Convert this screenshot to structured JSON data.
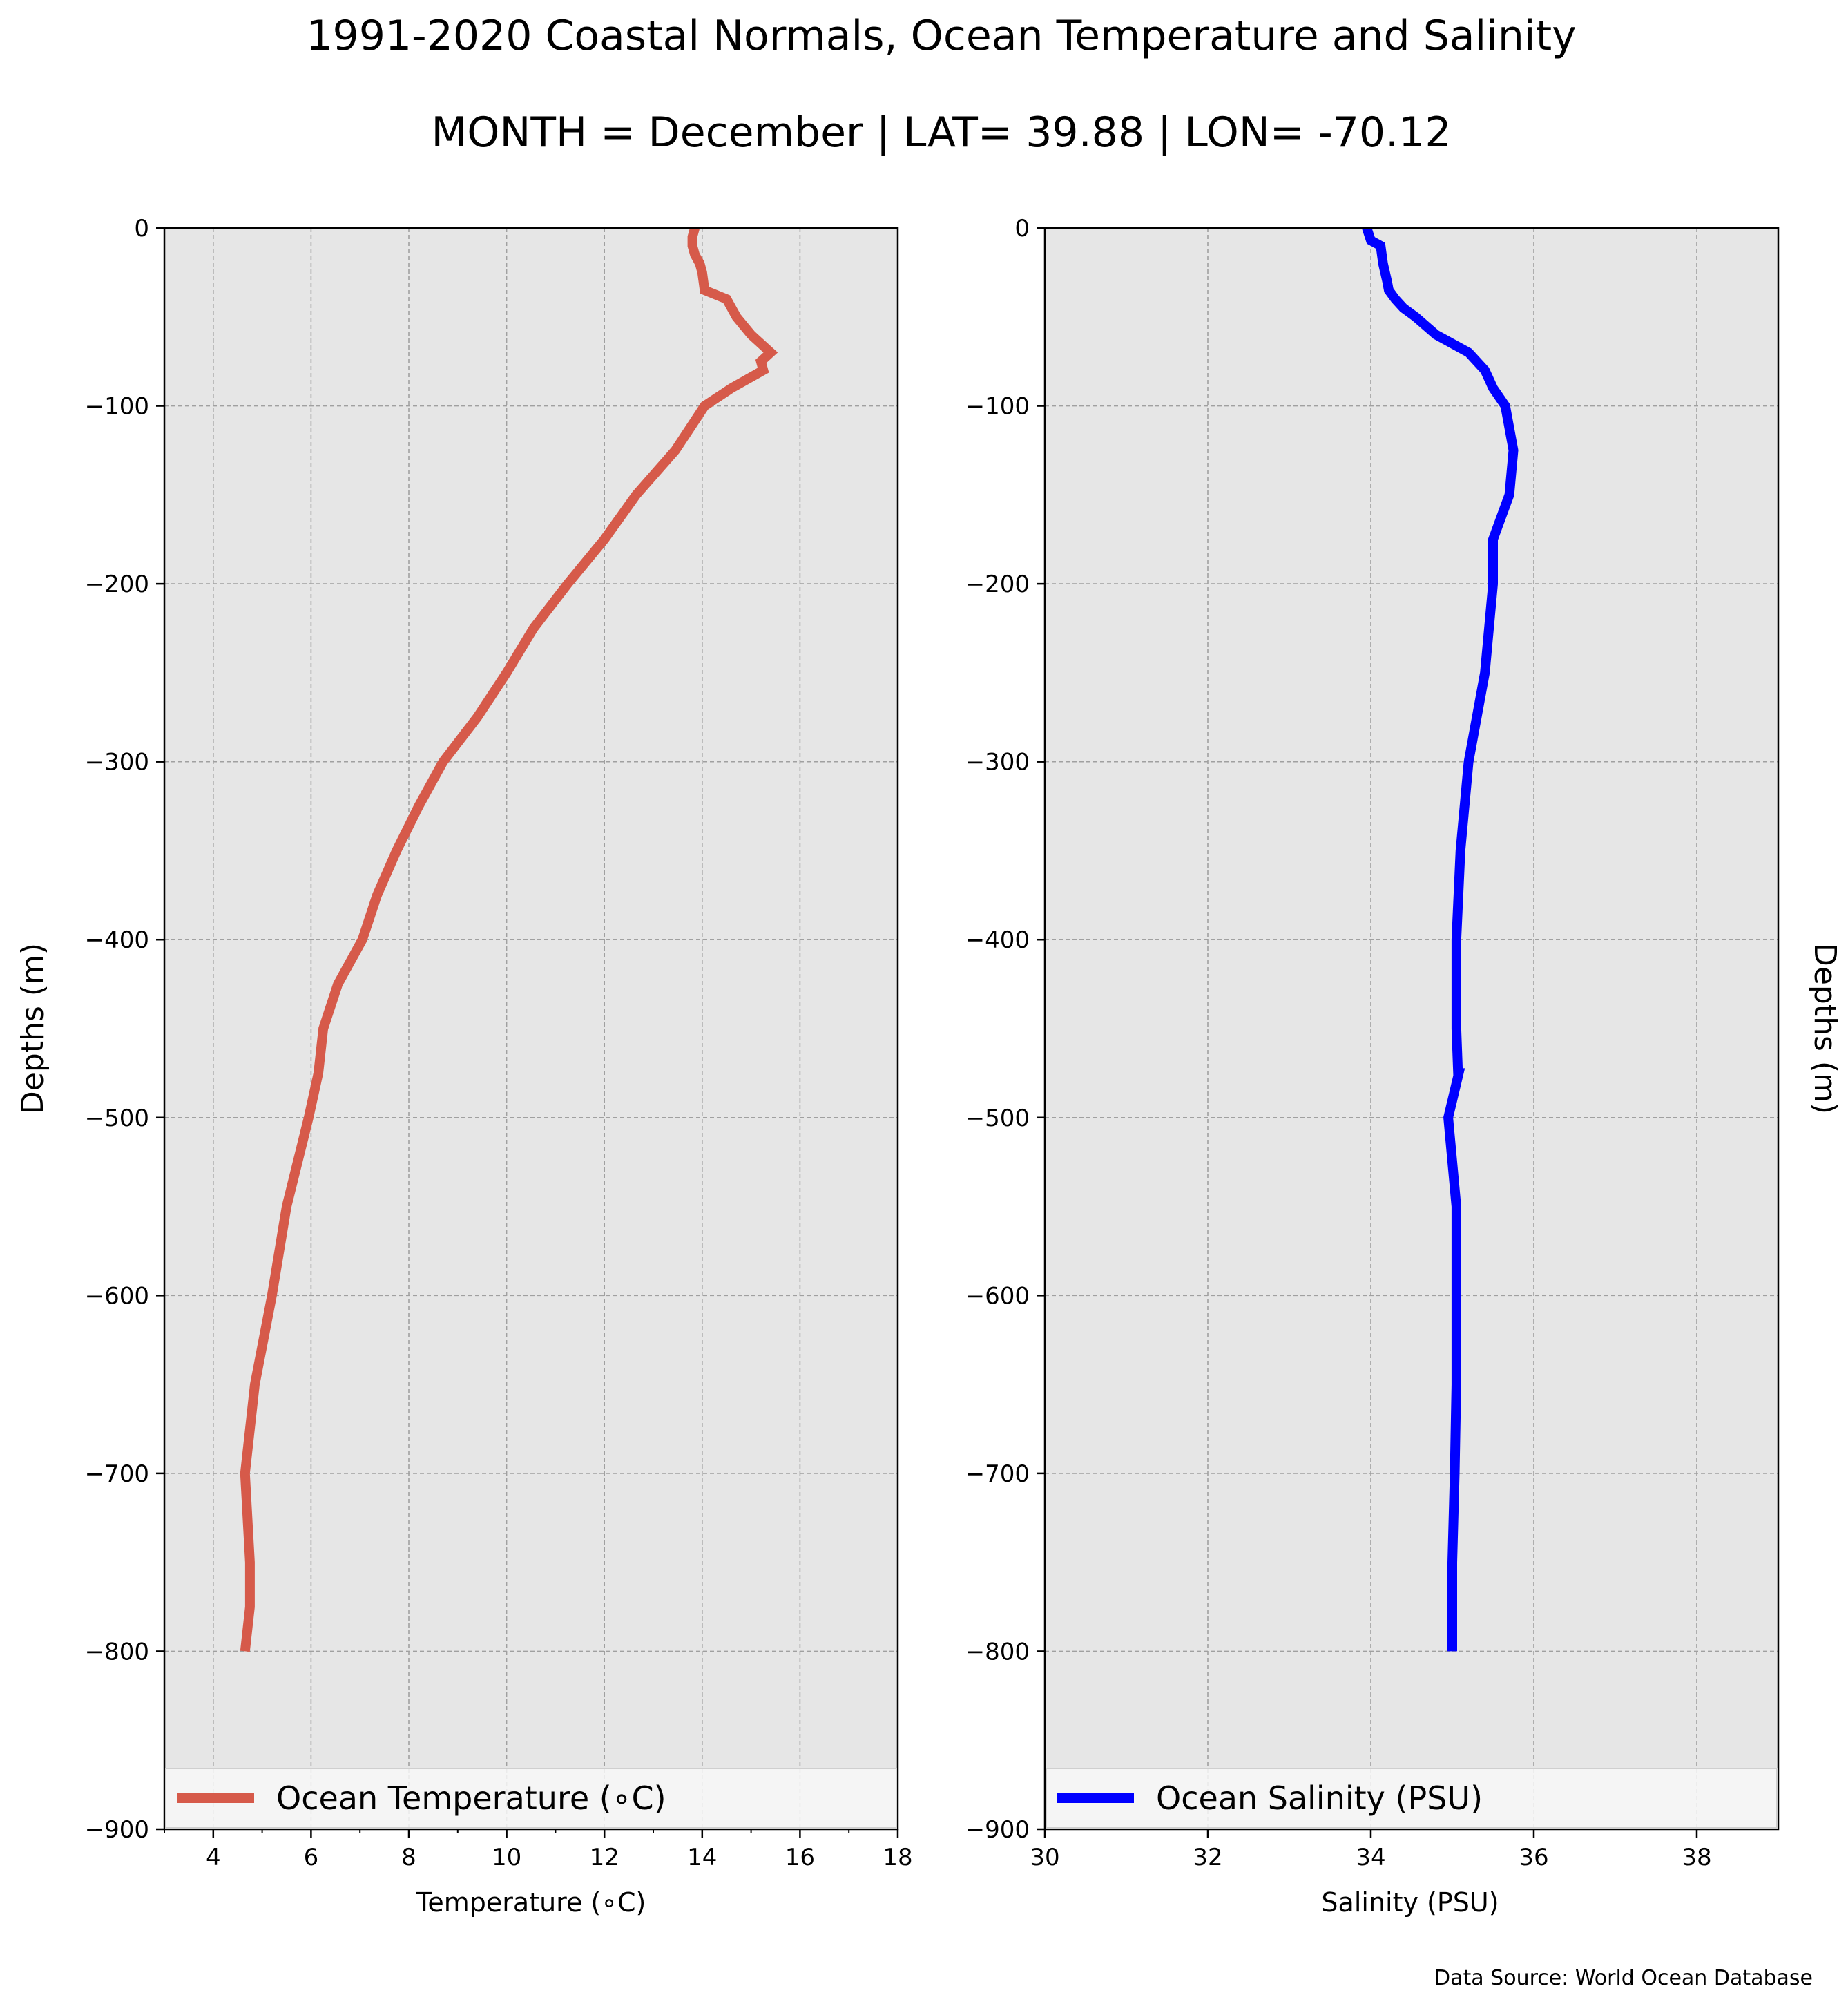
{
  "title": "1991-2020 Coastal Normals, Ocean Temperature and Salinity",
  "subtitle": "MONTH = December | LAT= 39.88 | LON= -70.12",
  "source": "Data Source: World Ocean Database",
  "colors": {
    "panel_background": "#e6e6e6",
    "grid": "#a0a0a0",
    "temperature_line": "#d65a4a",
    "salinity_line": "#0000ff"
  },
  "chart_data": [
    {
      "type": "line",
      "orientation": "vertical-profile",
      "xlabel": "Temperature (∘C)",
      "ylabel": "Depths (m)",
      "ylabel_side": "left",
      "xlim": [
        3,
        18
      ],
      "ylim": [
        -900,
        0
      ],
      "xticks": [
        4,
        6,
        8,
        10,
        12,
        14,
        16,
        18
      ],
      "yticks": [
        0,
        -100,
        -200,
        -300,
        -400,
        -500,
        -600,
        -700,
        -800,
        -900
      ],
      "ytick_labels": [
        "0",
        "−100",
        "−200",
        "−300",
        "−400",
        "−500",
        "−600",
        "−700",
        "−800",
        "−900"
      ],
      "grid": true,
      "legend": "lower center",
      "series": [
        {
          "name": "Ocean Temperature (∘C)",
          "color": "#d65a4a",
          "x": [
            13.85,
            13.8,
            13.8,
            13.85,
            13.95,
            14.0,
            14.05,
            14.5,
            14.7,
            15.0,
            15.4,
            15.2,
            15.25,
            14.6,
            14.05,
            13.45,
            12.65,
            12.0,
            11.25,
            10.55,
            10.0,
            9.4,
            8.7,
            8.2,
            7.75,
            7.35,
            7.05,
            6.55,
            6.25,
            6.15,
            5.95,
            5.5,
            5.2,
            4.85,
            4.65,
            4.75,
            4.75,
            4.65
          ],
          "y": [
            0,
            -5,
            -10,
            -15,
            -20,
            -25,
            -35,
            -40,
            -50,
            -60,
            -70,
            -75,
            -80,
            -90,
            -100,
            -125,
            -150,
            -175,
            -200,
            -225,
            -250,
            -275,
            -300,
            -325,
            -350,
            -375,
            -400,
            -425,
            -450,
            -475,
            -500,
            -550,
            -600,
            -650,
            -700,
            -750,
            -775,
            -800
          ]
        }
      ]
    },
    {
      "type": "line",
      "orientation": "vertical-profile",
      "xlabel": "Salinity (PSU)",
      "ylabel": "Depths (m)",
      "ylabel_side": "right",
      "xlim": [
        30,
        39
      ],
      "ylim": [
        -900,
        0
      ],
      "xticks": [
        30,
        32,
        34,
        36,
        38
      ],
      "yticks": [
        0,
        -100,
        -200,
        -300,
        -400,
        -500,
        -600,
        -700,
        -800,
        -900
      ],
      "ytick_labels": [
        "0",
        "−100",
        "−200",
        "−300",
        "−400",
        "−500",
        "−600",
        "−700",
        "−800",
        "−900"
      ],
      "grid": true,
      "legend": "lower center",
      "series": [
        {
          "name": "Ocean Salinity (PSU)",
          "color": "#0000ff",
          "x": [
            33.95,
            34.0,
            34.12,
            34.15,
            34.2,
            34.22,
            34.3,
            34.4,
            34.55,
            34.8,
            35.2,
            35.4,
            35.5,
            35.65,
            35.75,
            35.7,
            35.5,
            35.5,
            35.45,
            35.4,
            35.2,
            35.1,
            35.05,
            35.05,
            35.07,
            35.08,
            34.95,
            35.05,
            35.05,
            35.05,
            35.03,
            35.0,
            35.0
          ],
          "y": [
            0,
            -7,
            -10,
            -20,
            -30,
            -35,
            -40,
            -45,
            -50,
            -60,
            -70,
            -80,
            -90,
            -100,
            -125,
            -150,
            -175,
            -200,
            -225,
            -250,
            -300,
            -350,
            -400,
            -450,
            -475,
            -475,
            -500,
            -550,
            -600,
            -650,
            -700,
            -750,
            -800
          ]
        }
      ]
    }
  ]
}
